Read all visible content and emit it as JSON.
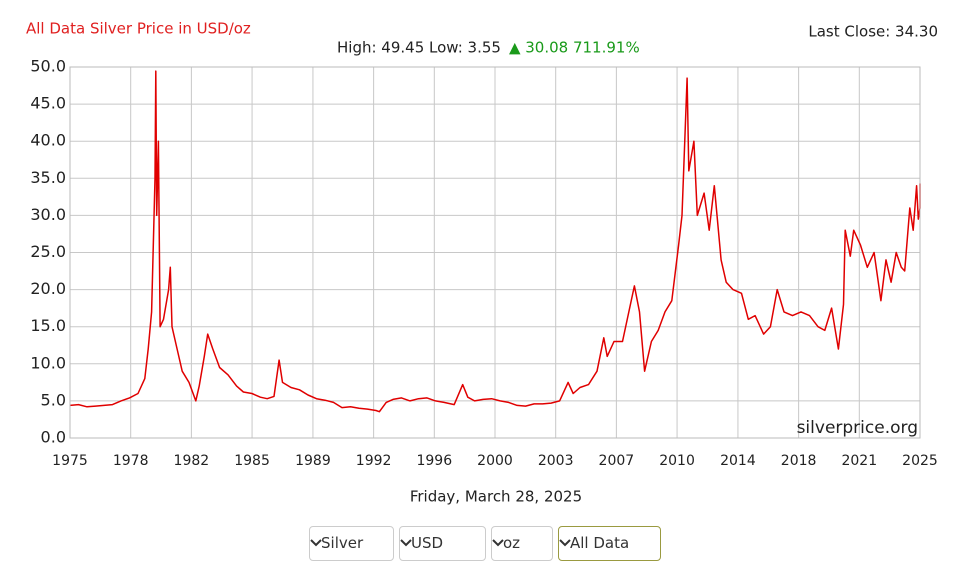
{
  "header": {
    "title": "All Data Silver Price in USD/oz",
    "last_close": "Last Close: 34.30",
    "range": "High: 49.45 Low: 3.55",
    "change": "▲ 30.08 711.91%"
  },
  "chart_data": {
    "type": "line",
    "watermark": "silverprice.org",
    "x_label": "Friday, March 28, 2025",
    "x": [
      1975,
      1975.5,
      1976,
      1976.5,
      1977,
      1977.5,
      1978,
      1978.5,
      1979,
      1979.4,
      1979.6,
      1979.8,
      1980.0,
      1980.05,
      1980.1,
      1980.2,
      1980.3,
      1980.5,
      1980.8,
      1980.9,
      1981,
      1981.3,
      1981.6,
      1982,
      1982.4,
      1982.6,
      1982.9,
      1983.1,
      1983.4,
      1983.8,
      1984.3,
      1984.8,
      1985.2,
      1985.7,
      1986.2,
      1986.6,
      1987.0,
      1987.3,
      1987.5,
      1988,
      1988.5,
      1989,
      1989.5,
      1990,
      1990.5,
      1991,
      1991.5,
      1992,
      1992.5,
      1993,
      1993.2,
      1993.6,
      1994,
      1994.5,
      1995,
      1995.5,
      1996,
      1996.5,
      1997,
      1997.6,
      1998.1,
      1998.4,
      1998.8,
      1999.3,
      1999.8,
      2000.3,
      2000.8,
      2001.3,
      2001.8,
      2002.3,
      2002.8,
      2003.3,
      2003.8,
      2004.3,
      2004.6,
      2005,
      2005.5,
      2006,
      2006.4,
      2006.6,
      2007,
      2007.5,
      2008.2,
      2008.5,
      2008.8,
      2009.2,
      2009.6,
      2010,
      2010.4,
      2010.8,
      2011.0,
      2011.3,
      2011.4,
      2011.7,
      2011.9,
      2012.3,
      2012.6,
      2012.9,
      2013.3,
      2013.6,
      2014,
      2014.5,
      2014.9,
      2015.3,
      2015.8,
      2016.2,
      2016.6,
      2017,
      2017.5,
      2018,
      2018.5,
      2019,
      2019.4,
      2019.8,
      2020.2,
      2020.5,
      2020.6,
      2020.9,
      2021.1,
      2021.5,
      2021.9,
      2022.3,
      2022.7,
      2023.0,
      2023.3,
      2023.6,
      2023.9,
      2024.1,
      2024.4,
      2024.6,
      2024.8,
      2024.9,
      2025.0,
      2025.0
    ],
    "series": [
      {
        "name": "Silver",
        "color": "#e00000",
        "values": [
          4.4,
          4.5,
          4.2,
          4.3,
          4.4,
          4.5,
          5.0,
          5.4,
          6.0,
          8.0,
          12,
          17,
          35,
          49.45,
          30,
          40,
          15,
          16,
          20,
          23,
          15,
          12,
          9,
          7.5,
          5.0,
          7,
          11,
          14,
          12,
          9.5,
          8.5,
          7,
          6.2,
          6,
          5.5,
          5.3,
          5.6,
          10.5,
          7.5,
          6.8,
          6.5,
          5.8,
          5.3,
          5.1,
          4.8,
          4.1,
          4.2,
          4.0,
          3.9,
          3.7,
          3.55,
          4.8,
          5.2,
          5.4,
          5.0,
          5.3,
          5.4,
          5.0,
          4.8,
          4.5,
          7.2,
          5.5,
          5.0,
          5.2,
          5.3,
          5.0,
          4.8,
          4.4,
          4.3,
          4.6,
          4.6,
          4.7,
          5.0,
          7.5,
          6.0,
          6.8,
          7.2,
          9.0,
          13.5,
          11,
          13.0,
          13.0,
          20.5,
          17,
          9.0,
          13,
          14.5,
          17,
          18.5,
          26,
          30,
          48.5,
          36,
          40,
          30,
          33,
          28,
          34,
          24,
          21,
          20,
          19.5,
          16,
          16.5,
          14,
          15,
          20,
          17,
          16.5,
          17,
          16.5,
          15,
          14.5,
          17.5,
          12,
          18,
          28,
          24.5,
          28,
          26,
          23,
          25,
          18.5,
          24,
          21,
          25,
          23,
          22.5,
          31,
          28,
          34,
          29.5,
          31,
          34.3
        ]
      }
    ],
    "xlim": [
      1975,
      2025
    ],
    "xticks": [
      {
        "value": 1975,
        "label": "1975"
      },
      {
        "value": 1978.57,
        "label": "1978"
      },
      {
        "value": 1982.14,
        "label": "1982"
      },
      {
        "value": 1985.71,
        "label": "1985"
      },
      {
        "value": 1989.29,
        "label": "1989"
      },
      {
        "value": 1992.86,
        "label": "1992"
      },
      {
        "value": 1996.43,
        "label": "1996"
      },
      {
        "value": 2000,
        "label": "2000"
      },
      {
        "value": 2003.57,
        "label": "2003"
      },
      {
        "value": 2007.14,
        "label": "2007"
      },
      {
        "value": 2010.71,
        "label": "2010"
      },
      {
        "value": 2014.29,
        "label": "2014"
      },
      {
        "value": 2017.86,
        "label": "2018"
      },
      {
        "value": 2021.43,
        "label": "2021"
      },
      {
        "value": 2025,
        "label": "2025"
      }
    ],
    "ylim": [
      0,
      50
    ],
    "yticks": [
      {
        "value": 0,
        "label": "0.0"
      },
      {
        "value": 5,
        "label": "5.0"
      },
      {
        "value": 10,
        "label": "10.0"
      },
      {
        "value": 15,
        "label": "15.0"
      },
      {
        "value": 20,
        "label": "20.0"
      },
      {
        "value": 25,
        "label": "25.0"
      },
      {
        "value": 30,
        "label": "30.0"
      },
      {
        "value": 35,
        "label": "35.0"
      },
      {
        "value": 40,
        "label": "40.0"
      },
      {
        "value": 45,
        "label": "45.0"
      },
      {
        "value": 50,
        "label": "50.0"
      }
    ],
    "grid": true
  },
  "controls": {
    "metal": "Silver",
    "currency": "USD",
    "unit": "oz",
    "period": "All Data"
  }
}
